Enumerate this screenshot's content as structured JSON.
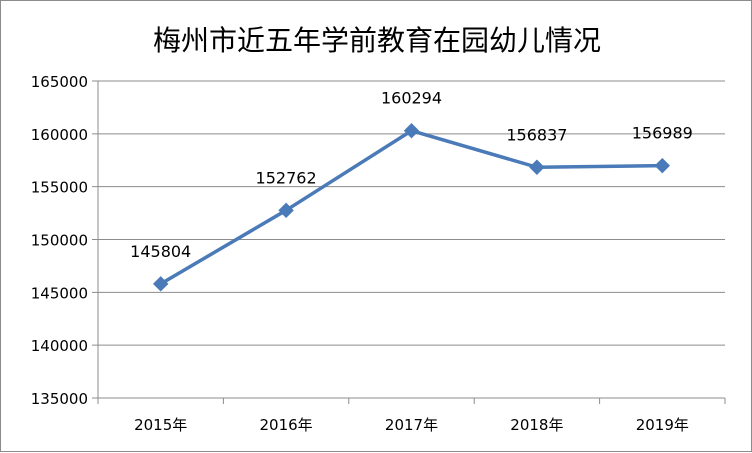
{
  "chart_data": {
    "type": "line",
    "title": "梅州市近五年学前教育在园幼儿情况",
    "xlabel": "",
    "ylabel": "",
    "categories": [
      "2015年",
      "2016年",
      "2017年",
      "2018年",
      "2019年"
    ],
    "series": [
      {
        "values": [
          145804,
          152762,
          160294,
          156837,
          156989
        ]
      }
    ],
    "data_labels": [
      "145804",
      "152762",
      "160294",
      "156837",
      "156989"
    ],
    "ylim": [
      135000,
      165000
    ],
    "yticks": [
      135000,
      140000,
      145000,
      150000,
      155000,
      160000,
      165000
    ],
    "ytick_labels": [
      "135000",
      "140000",
      "145000",
      "150000",
      "155000",
      "160000",
      "165000"
    ],
    "grid": true,
    "legend": "none",
    "colors": {
      "line": "#4a7ab8",
      "marker": "#4a7ab8",
      "grid": "#8c8c8c"
    }
  }
}
